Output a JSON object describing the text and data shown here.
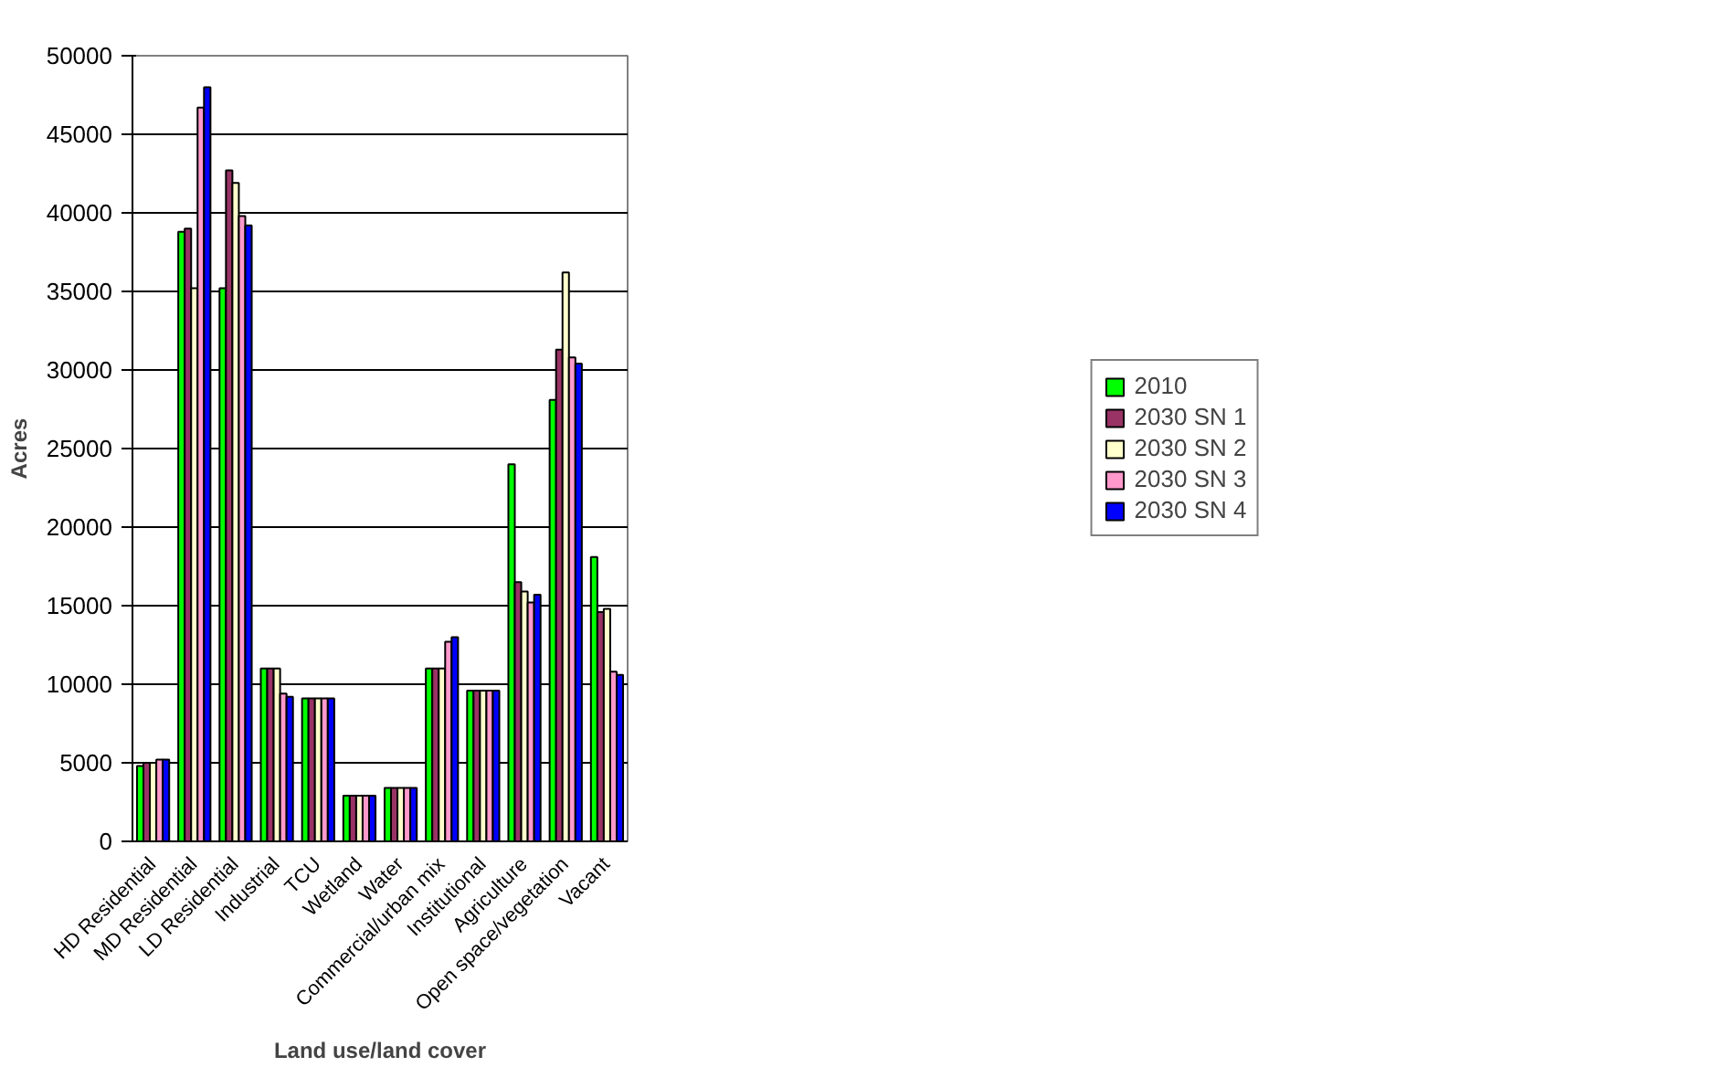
{
  "chart_data": {
    "type": "bar",
    "xlabel": "Land use/land cover",
    "ylabel": "Acres",
    "categories": [
      "HD Residential",
      "MD Residential",
      "LD Residential",
      "Industrial",
      "TCU",
      "Wetland",
      "Water",
      "Commercial/urban mix",
      "Institutional",
      "Agriculture",
      "Open space/vegetation",
      "Vacant"
    ],
    "series": [
      {
        "name": "2010",
        "color": "#00ff00",
        "values": [
          4800,
          38800,
          35200,
          11000,
          9100,
          2900,
          3400,
          11000,
          9600,
          24000,
          28100,
          18100
        ]
      },
      {
        "name": "2030 SN 1",
        "color": "#993366",
        "values": [
          5000,
          39000,
          42700,
          11000,
          9100,
          2900,
          3400,
          11000,
          9600,
          16500,
          31300,
          14600
        ]
      },
      {
        "name": "2030 SN 2",
        "color": "#ffffcc",
        "values": [
          5000,
          35200,
          41900,
          11000,
          9100,
          2900,
          3400,
          11000,
          9600,
          15900,
          36200,
          14800
        ]
      },
      {
        "name": "2030 SN 3",
        "color": "#ff99cc",
        "values": [
          5200,
          46700,
          39800,
          9400,
          9100,
          2900,
          3400,
          12700,
          9600,
          15200,
          30800,
          10800
        ]
      },
      {
        "name": "2030 SN 4",
        "color": "#0000ff",
        "values": [
          5200,
          48000,
          39200,
          9200,
          9100,
          2900,
          3400,
          13000,
          9600,
          15700,
          30400,
          10600
        ]
      }
    ],
    "ylim": [
      0,
      50000
    ],
    "yticks": [
      0,
      5000,
      10000,
      15000,
      20000,
      25000,
      30000,
      35000,
      40000,
      45000,
      50000
    ],
    "grid": "y",
    "legend": "right"
  }
}
